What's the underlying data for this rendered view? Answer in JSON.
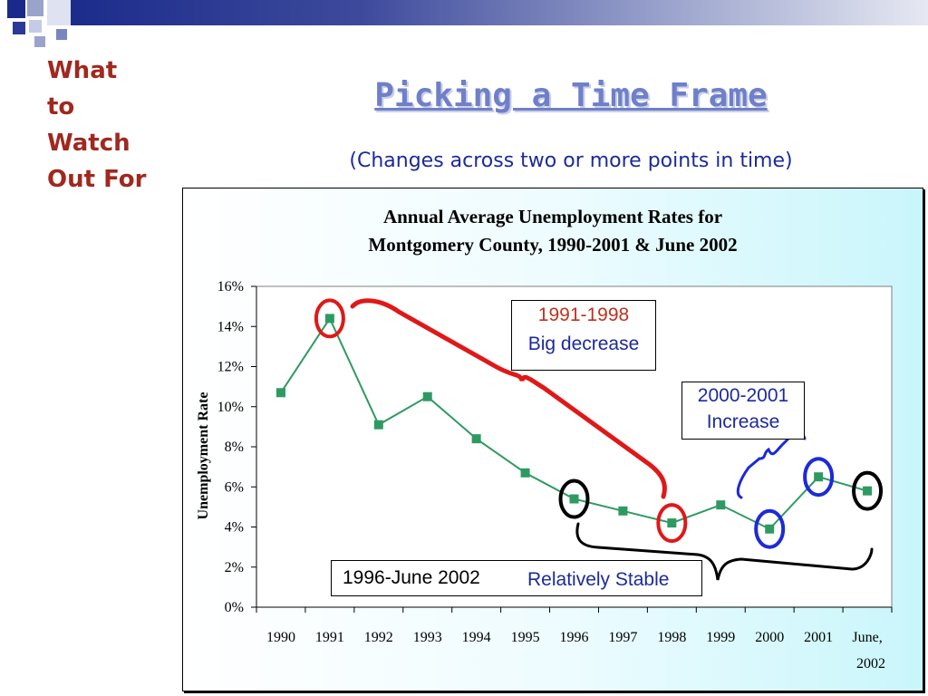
{
  "side_title": [
    "What",
    "to",
    "Watch",
    "Out For"
  ],
  "title": "Picking a Time Frame",
  "subtitle": "(Changes across two or more points in time)",
  "colors": {
    "side_title": "#a0281e",
    "title": "#6f80c8",
    "subtitle": "#1c2a9c",
    "series": "#2e9a62",
    "red_mark": "#e01818",
    "blue_mark": "#1c2ad8",
    "black_mark": "#000000"
  },
  "chart_data": {
    "type": "line",
    "title_lines": [
      "Annual Average Unemployment Rates for",
      "Montgomery County, 1990-2001 & June 2002"
    ],
    "ylabel": "Unemployment Rate",
    "xlabel": "",
    "categories": [
      "1990",
      "1991",
      "1992",
      "1993",
      "1994",
      "1995",
      "1996",
      "1997",
      "1998",
      "1999",
      "2000",
      "2001",
      "June, 2002"
    ],
    "category_lines": [
      [
        "1990"
      ],
      [
        "1991"
      ],
      [
        "1992"
      ],
      [
        "1993"
      ],
      [
        "1994"
      ],
      [
        "1995"
      ],
      [
        "1996"
      ],
      [
        "1997"
      ],
      [
        "1998"
      ],
      [
        "1999"
      ],
      [
        "2000"
      ],
      [
        "2001"
      ],
      [
        "June,",
        "2002"
      ]
    ],
    "values": [
      10.7,
      14.4,
      9.1,
      10.5,
      8.4,
      6.7,
      5.4,
      4.8,
      4.2,
      5.1,
      3.9,
      6.5,
      5.8
    ],
    "ylim": [
      0,
      16
    ],
    "yticks": [
      0,
      2,
      4,
      6,
      8,
      10,
      12,
      14,
      16
    ],
    "ytick_labels": [
      "0%",
      "2%",
      "4%",
      "6%",
      "8%",
      "10%",
      "12%",
      "14%",
      "16%"
    ],
    "grid": false,
    "highlight": {
      "red": [
        1,
        8
      ],
      "blue": [
        10,
        11
      ],
      "black": [
        6,
        12
      ]
    }
  },
  "annotations": {
    "red_box": {
      "line1": "1991-1998",
      "line2": "Big decrease"
    },
    "blue_box": {
      "line1": "2000-2001",
      "line2": "Increase"
    },
    "stable_box": {
      "left": "1996-June 2002",
      "right": "Relatively Stable"
    }
  }
}
